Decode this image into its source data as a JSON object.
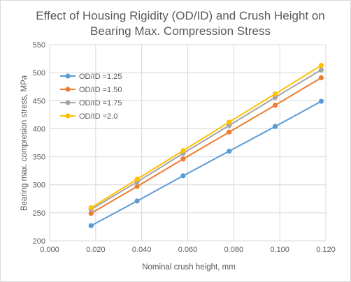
{
  "chart_data": {
    "type": "line",
    "title_line1": "Effect of Housing Rigidity (OD/ID) and Crush Height on",
    "title_line2": "Bearing Max. Compression Stress",
    "xlabel": "Nominal crush height, mm",
    "ylabel": "Bearing max. compresion stress, MPa",
    "xlim": [
      0.0,
      0.12
    ],
    "ylim": [
      200,
      550
    ],
    "x_ticks": [
      "0.000",
      "0.020",
      "0.040",
      "0.060",
      "0.080",
      "0.100",
      "0.120"
    ],
    "y_ticks": [
      "200",
      "250",
      "300",
      "350",
      "400",
      "450",
      "500",
      "550"
    ],
    "grid": "vertical and horizontal",
    "legend_position": "left",
    "x": [
      0.018,
      0.038,
      0.058,
      0.078,
      0.098,
      0.118
    ],
    "series": [
      {
        "name": "OD/ID =1.25",
        "color": "#5b9bd5",
        "values": [
          227,
          271,
          316,
          360,
          404,
          449
        ]
      },
      {
        "name": "OD/ID =1.50",
        "color": "#ed7d31",
        "values": [
          249,
          297,
          346,
          394,
          442,
          491
        ]
      },
      {
        "name": "OD/ID =1.75",
        "color": "#a5a5a5",
        "values": [
          256,
          305,
          356,
          406,
          456,
          505
        ]
      },
      {
        "name": "OD/ID =2.0",
        "color": "#ffc000",
        "values": [
          259,
          310,
          361,
          412,
          462,
          513
        ]
      }
    ]
  }
}
